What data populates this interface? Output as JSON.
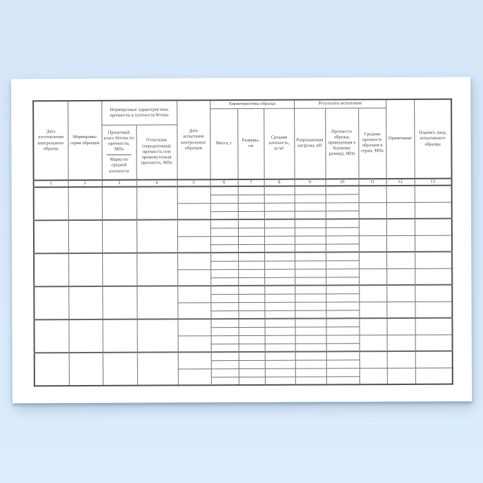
{
  "page": {
    "background_color": "#d7e9fb",
    "paper_color": "#ffffff",
    "border_color": "#6f6f6f",
    "text_color": "#3b3b3b"
  },
  "table": {
    "groups": {
      "norm": "Нормируемые характеристики прочности и плотности бетона",
      "sample": "Характеристика образца",
      "results": "Результаты испытания"
    },
    "columns": {
      "c1": {
        "num": "1",
        "label": "Дата изготовления контрольного образца"
      },
      "c2": {
        "num": "2",
        "label": "Маркировка серии образцов"
      },
      "c3": {
        "num": "3",
        "label_top": "Проектный класс бетона по прочности, МПа",
        "label_bottom": "Марка по средней плотности"
      },
      "c4": {
        "num": "4",
        "label": "Отпускная (передаточная) прочность или промежуточная прочность, МПа"
      },
      "c5": {
        "num": "5",
        "label": "Дата испытания контрольных образцов"
      },
      "c6": {
        "num": "6",
        "label": "Масса, г"
      },
      "c7": {
        "num": "7",
        "label": "Размеры, см"
      },
      "c8": {
        "num": "8",
        "label": "Средняя плотность, кг/м³"
      },
      "c9": {
        "num": "9",
        "label": "Разрушающая нагрузка, кН"
      },
      "c10": {
        "num": "10",
        "label": "Прочность образца, приведенная к базовому размеру, МПа"
      },
      "c11": {
        "num": "11",
        "label": "Средняя прочность образцов в серии, МПа"
      },
      "c12": {
        "num": "12",
        "label": "Примечание"
      },
      "c13": {
        "num": "13",
        "label": "Подпись лица, испытавшего образцы"
      }
    },
    "body": {
      "blocks": 6,
      "rows_per_block": 4,
      "cell_values": ""
    }
  }
}
